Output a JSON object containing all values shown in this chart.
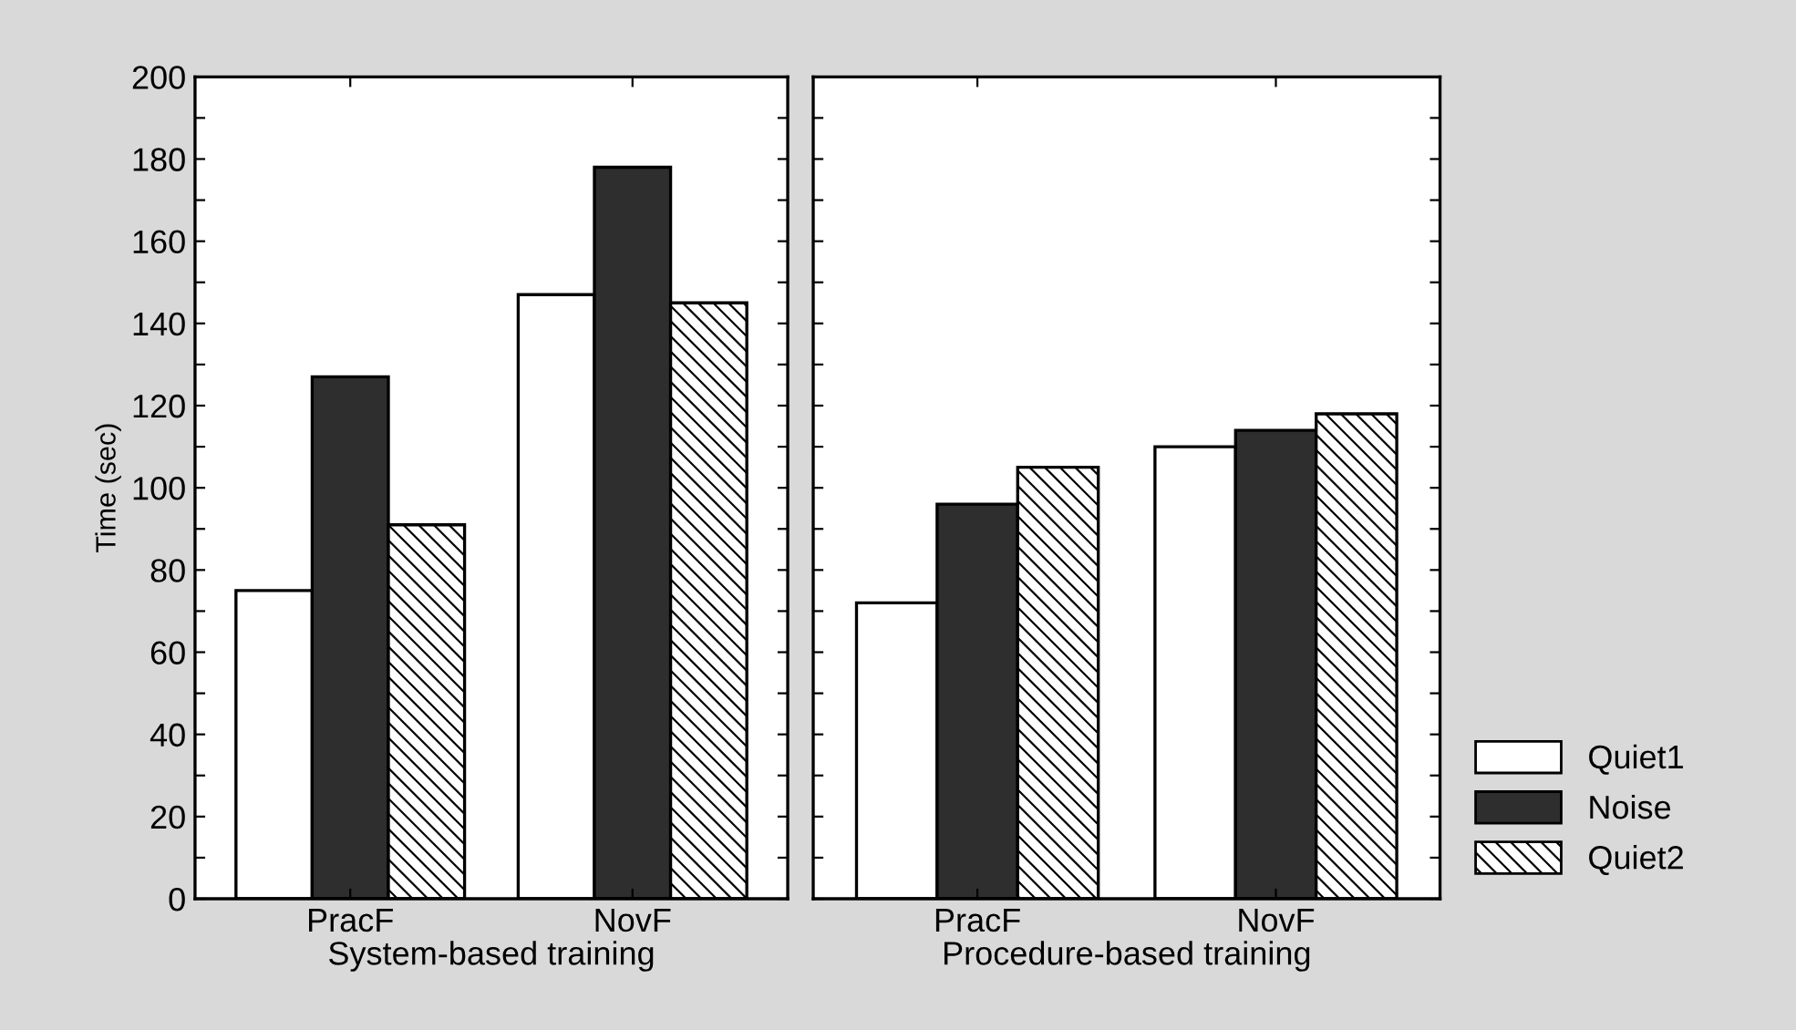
{
  "chart_data": [
    {
      "type": "bar",
      "categories": [
        "PracF",
        "NovF"
      ],
      "xlabel": "System-based training",
      "ylabel": "Time (sec)",
      "ylim": [
        0,
        200
      ],
      "yticks": [
        0,
        {
          "value": 10,
          "label": null
        },
        20,
        {
          "value": 30,
          "label": null
        },
        40,
        {
          "value": 50,
          "label": null
        },
        60,
        {
          "value": 70,
          "label": null
        },
        80,
        {
          "value": 90,
          "label": null
        },
        100,
        {
          "value": 110,
          "label": null
        },
        120,
        {
          "value": 130,
          "label": null
        },
        140,
        {
          "value": 150,
          "label": null
        },
        160,
        {
          "value": 170,
          "label": null
        },
        180,
        {
          "value": 190,
          "label": null
        },
        200
      ],
      "grid": false,
      "series": [
        {
          "color": "#ffffff",
          "values": [
            75,
            147
          ]
        },
        {
          "color": "#2e2e2e",
          "values": [
            127,
            178
          ]
        },
        {
          "color": "#000000",
          "values": [
            91,
            145
          ]
        }
      ]
    },
    {
      "type": "bar",
      "categories": [
        "PracF",
        "NovF"
      ],
      "xlabel": "Procedure-based training",
      "ylim": [
        0,
        200
      ],
      "yticks": [
        0,
        {
          "value": 10,
          "label": null
        },
        20,
        {
          "value": 30,
          "label": null
        },
        40,
        {
          "value": 50,
          "label": null
        },
        60,
        {
          "value": 70,
          "label": null
        },
        80,
        {
          "value": 90,
          "label": null
        },
        100,
        {
          "value": 110,
          "label": null
        },
        120,
        {
          "value": 130,
          "label": null
        },
        140,
        {
          "value": 150,
          "label": null
        },
        160,
        {
          "value": 170,
          "label": null
        },
        180,
        {
          "value": 190,
          "label": null
        },
        200
      ],
      "tick_labels": "x",
      "grid": false,
      "legend": "bottom right",
      "series": [
        {
          "name": "Quiet1",
          "color": "#ffffff",
          "values": [
            72,
            110
          ]
        },
        {
          "name": "Noise",
          "color": "#2e2e2e",
          "values": [
            96,
            114
          ]
        },
        {
          "name": "Quiet2",
          "color": "#000000",
          "values": [
            105,
            118
          ]
        }
      ]
    }
  ]
}
